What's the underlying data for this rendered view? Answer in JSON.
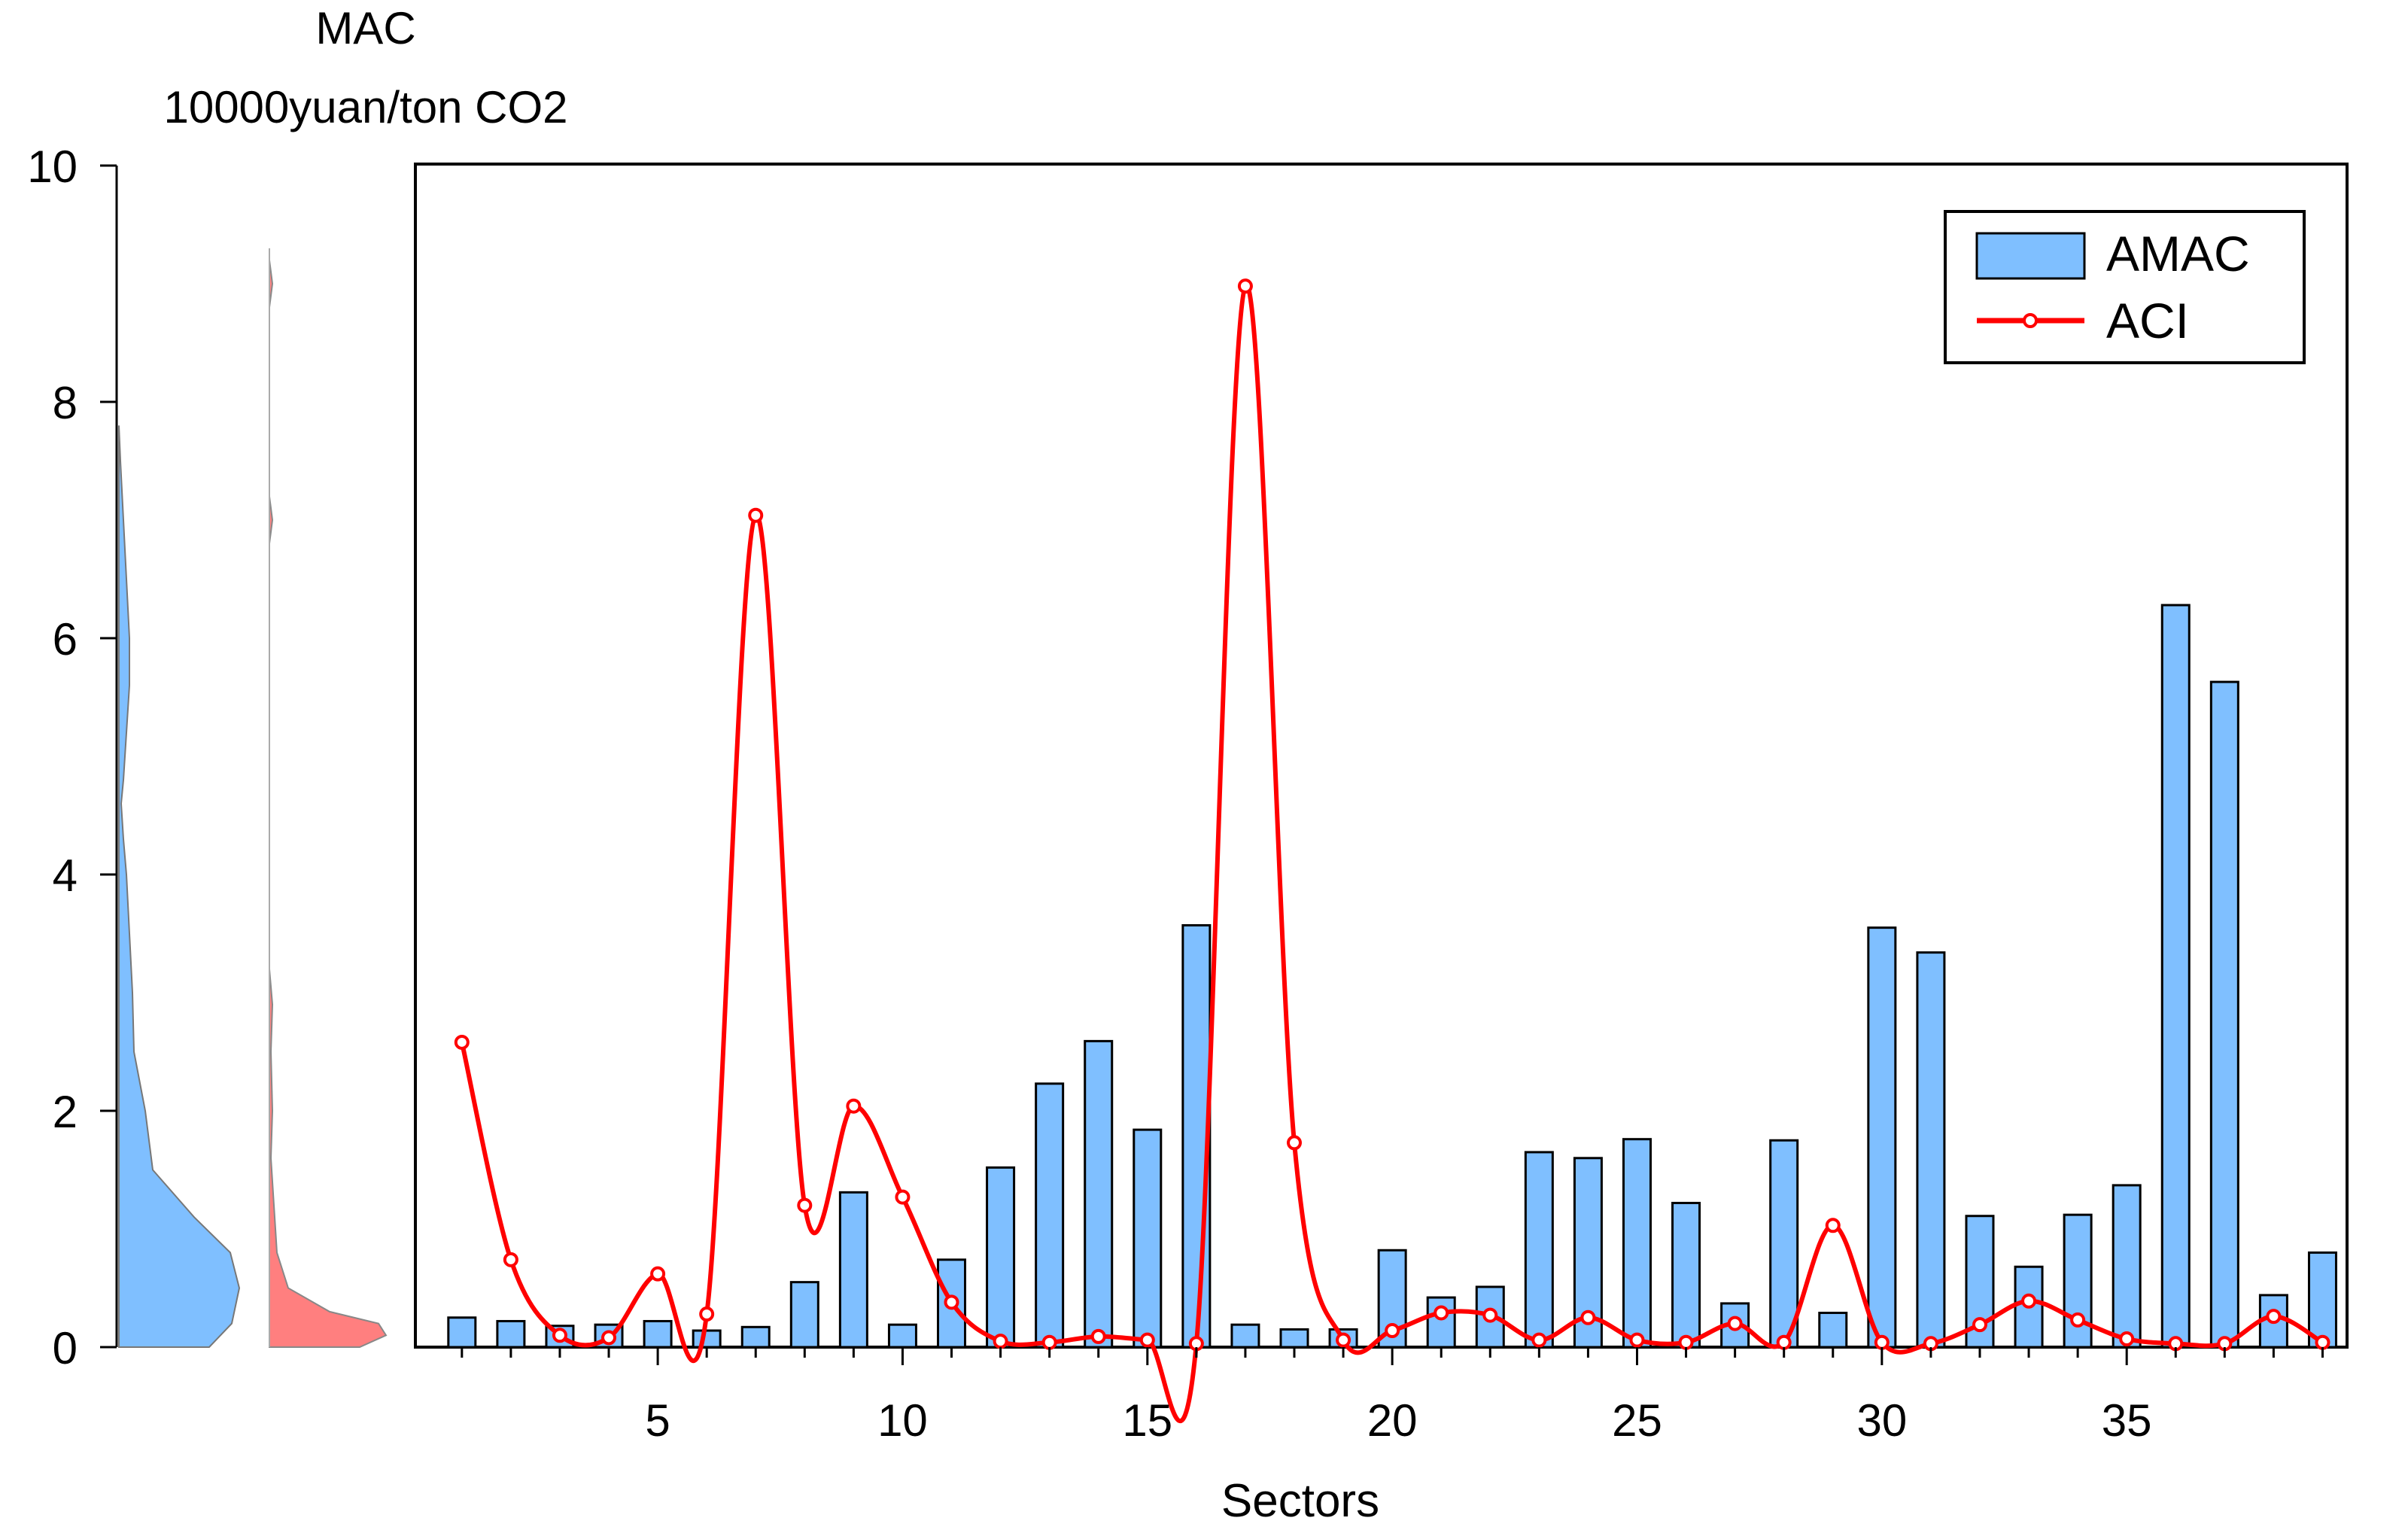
{
  "chart_data": {
    "type": "bar",
    "ylabel_lines": [
      "MAC",
      "10000yuan/ton CO2"
    ],
    "xlabel": "Sectors",
    "ylim": [
      0,
      10
    ],
    "xlim": [
      0.05,
      39.5
    ],
    "y_ticks": [
      0,
      2,
      4,
      6,
      8,
      10
    ],
    "x_ticks": [
      5,
      10,
      15,
      20,
      25,
      30,
      35
    ],
    "legend_position": "top-right",
    "categories": [
      1,
      2,
      3,
      4,
      5,
      6,
      7,
      8,
      9,
      10,
      11,
      12,
      13,
      14,
      15,
      16,
      17,
      18,
      19,
      20,
      21,
      22,
      23,
      24,
      25,
      26,
      27,
      28,
      29,
      30,
      31,
      32,
      33,
      34,
      35,
      36,
      37,
      38,
      39
    ],
    "series": [
      {
        "name": "AMAC",
        "kind": "bar",
        "color": "#7fbfff",
        "values": [
          0.25,
          0.22,
          0.18,
          0.19,
          0.22,
          0.14,
          0.17,
          0.55,
          1.31,
          0.19,
          0.74,
          1.52,
          2.23,
          2.59,
          1.84,
          3.57,
          0.19,
          0.15,
          0.15,
          0.82,
          0.42,
          0.51,
          1.65,
          1.6,
          1.76,
          1.22,
          0.37,
          1.75,
          0.29,
          3.55,
          3.34,
          1.11,
          0.68,
          1.12,
          1.37,
          6.28,
          5.63,
          0.44,
          0.8
        ]
      },
      {
        "name": "ACI",
        "kind": "line",
        "color": "#ff0000",
        "values": [
          2.58,
          0.74,
          0.1,
          0.08,
          0.62,
          0.28,
          7.04,
          1.2,
          2.04,
          1.27,
          0.38,
          0.05,
          0.04,
          0.09,
          0.06,
          0.03,
          8.98,
          1.73,
          0.06,
          0.14,
          0.29,
          0.27,
          0.06,
          0.25,
          0.06,
          0.04,
          0.2,
          0.04,
          1.03,
          0.04,
          0.03,
          0.19,
          0.39,
          0.23,
          0.07,
          0.03,
          0.03,
          0.26,
          0.04
        ]
      }
    ],
    "density_panels": [
      {
        "name": "AMAC",
        "color": "#7fbfff"
      },
      {
        "name": "ACI",
        "color": "#ff7f7f"
      }
    ]
  }
}
